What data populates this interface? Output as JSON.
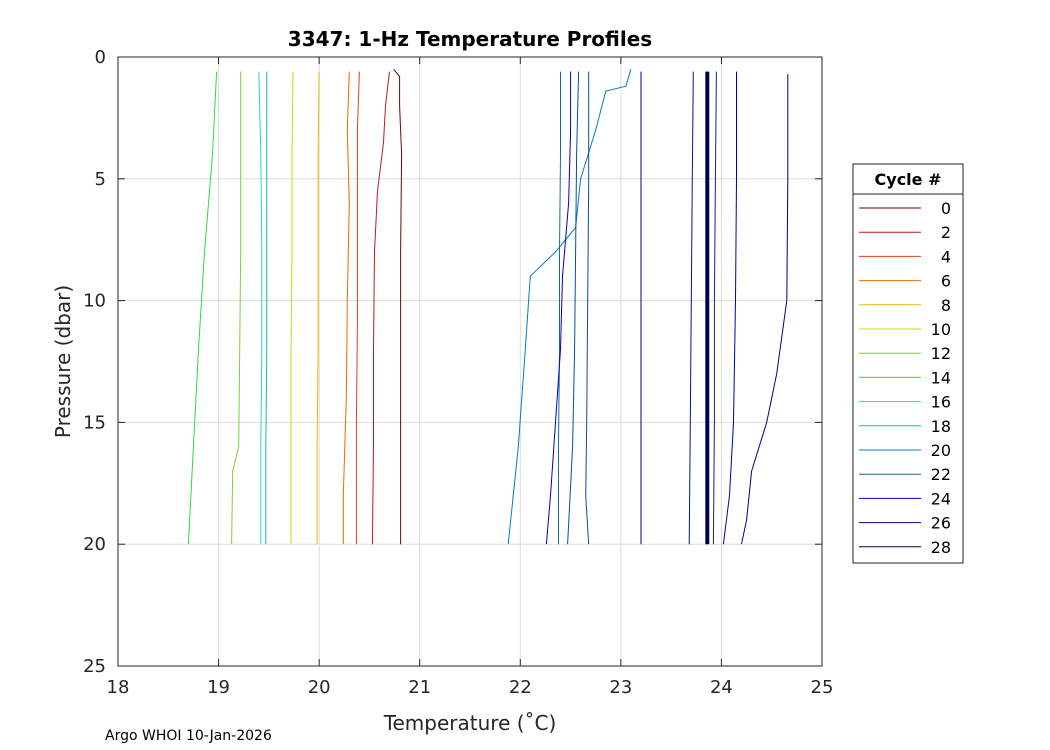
{
  "chart_data": {
    "type": "line",
    "title": "3347: 1-Hz Temperature Profiles",
    "xlabel": "Temperature (˚C)",
    "ylabel": "Pressure (dbar)",
    "xlim": [
      18,
      25
    ],
    "ylim": [
      0,
      25
    ],
    "y_reversed": true,
    "xticks": [
      18,
      19,
      20,
      21,
      22,
      23,
      24,
      25
    ],
    "yticks": [
      0,
      5,
      10,
      15,
      20,
      25
    ],
    "grid": true,
    "legend": {
      "title": "Cycle #",
      "placement": "outside-right"
    },
    "series": [
      {
        "name": "0",
        "color": "#800000",
        "points": [
          [
            20.74,
            0.5
          ],
          [
            20.8,
            0.8
          ],
          [
            20.8,
            2
          ],
          [
            20.82,
            4
          ],
          [
            20.81,
            8
          ],
          [
            20.81,
            12
          ],
          [
            20.81,
            16
          ],
          [
            20.81,
            20
          ]
        ]
      },
      {
        "name": "2",
        "color": "#b71c1c",
        "points": [
          [
            20.7,
            0.6
          ],
          [
            20.66,
            2
          ],
          [
            20.64,
            3.5
          ],
          [
            20.58,
            5.5
          ],
          [
            20.55,
            8
          ],
          [
            20.54,
            12
          ],
          [
            20.54,
            16
          ],
          [
            20.53,
            20
          ]
        ]
      },
      {
        "name": "4",
        "color": "#d84315",
        "points": [
          [
            20.4,
            0.6
          ],
          [
            20.38,
            3
          ],
          [
            20.38,
            7
          ],
          [
            20.38,
            11
          ],
          [
            20.37,
            15
          ],
          [
            20.37,
            20
          ]
        ]
      },
      {
        "name": "6",
        "color": "#ef6c00",
        "points": [
          [
            20.3,
            0.6
          ],
          [
            20.28,
            3
          ],
          [
            20.3,
            6
          ],
          [
            20.28,
            10
          ],
          [
            20.27,
            14
          ],
          [
            20.24,
            18
          ],
          [
            20.24,
            20
          ]
        ]
      },
      {
        "name": "8",
        "color": "#e6b800",
        "points": [
          [
            20.0,
            0.6
          ],
          [
            19.99,
            4
          ],
          [
            19.99,
            8
          ],
          [
            19.99,
            12
          ],
          [
            19.98,
            16
          ],
          [
            19.98,
            20
          ]
        ]
      },
      {
        "name": "10",
        "color": "#c8d91a",
        "points": [
          [
            19.74,
            0.6
          ],
          [
            19.73,
            4
          ],
          [
            19.73,
            8
          ],
          [
            19.72,
            12
          ],
          [
            19.72,
            16
          ],
          [
            19.72,
            20
          ]
        ]
      },
      {
        "name": "12",
        "color": "#7cd23a",
        "points": [
          [
            19.22,
            0.6
          ],
          [
            19.22,
            4
          ],
          [
            19.22,
            8
          ],
          [
            19.21,
            12
          ],
          [
            19.2,
            16
          ],
          [
            19.14,
            17
          ],
          [
            19.13,
            20
          ]
        ]
      },
      {
        "name": "14",
        "color": "#33d44a",
        "points": [
          [
            18.98,
            0.6
          ],
          [
            18.94,
            4
          ],
          [
            18.86,
            8
          ],
          [
            18.8,
            12
          ],
          [
            18.75,
            16
          ],
          [
            18.7,
            20
          ]
        ]
      },
      {
        "name": "16",
        "color": "#22d6cf",
        "points": [
          [
            19.4,
            0.6
          ],
          [
            19.42,
            4
          ],
          [
            19.43,
            8
          ],
          [
            19.43,
            12
          ],
          [
            19.42,
            16
          ],
          [
            19.42,
            20
          ]
        ]
      },
      {
        "name": "18",
        "color": "#12bba0",
        "points": [
          [
            19.48,
            0.6
          ],
          [
            19.48,
            4
          ],
          [
            19.48,
            8
          ],
          [
            19.48,
            12
          ],
          [
            19.47,
            16
          ],
          [
            19.47,
            20
          ]
        ]
      },
      {
        "name": "20",
        "color": "#0a78c8",
        "points": [
          [
            23.1,
            0.5
          ],
          [
            23.05,
            1.2
          ],
          [
            22.85,
            1.4
          ],
          [
            22.75,
            3
          ],
          [
            22.6,
            5
          ],
          [
            22.55,
            7
          ],
          [
            22.35,
            8
          ],
          [
            22.1,
            9
          ],
          [
            22.05,
            12
          ],
          [
            21.98,
            16
          ],
          [
            21.88,
            20
          ]
        ]
      },
      {
        "name": "22",
        "color": "#1b6a9a",
        "points": [
          [
            22.4,
            0.6
          ],
          [
            22.4,
            4
          ],
          [
            22.39,
            8
          ],
          [
            22.39,
            12
          ],
          [
            22.38,
            16
          ],
          [
            22.38,
            20
          ]
        ]
      },
      {
        "name": "24",
        "color": "#0000cd",
        "points": [
          [
            22.5,
            0.6
          ],
          [
            22.5,
            3
          ],
          [
            22.48,
            6
          ],
          [
            22.42,
            9
          ],
          [
            22.4,
            12
          ],
          [
            22.35,
            15
          ],
          [
            22.3,
            18
          ],
          [
            22.26,
            20
          ]
        ]
      },
      {
        "name": "26",
        "color": "#00008b",
        "points": [
          [
            23.2,
            0.6
          ],
          [
            23.2,
            5
          ],
          [
            23.2,
            10
          ],
          [
            23.2,
            15
          ],
          [
            23.2,
            20
          ]
        ]
      },
      {
        "name": "28",
        "color": "#000050",
        "points": [
          [
            23.86,
            0.6
          ],
          [
            23.86,
            5
          ],
          [
            23.86,
            10
          ],
          [
            23.86,
            15
          ],
          [
            23.86,
            20
          ]
        ]
      },
      {
        "name": "",
        "color": "#000080",
        "points": [
          [
            24.66,
            0.7
          ],
          [
            24.66,
            5
          ],
          [
            24.65,
            10
          ],
          [
            24.55,
            13
          ],
          [
            24.45,
            15
          ],
          [
            24.3,
            17
          ],
          [
            24.25,
            19
          ],
          [
            24.2,
            20
          ]
        ]
      },
      {
        "name": "",
        "color": "#0000b0",
        "points": [
          [
            24.15,
            0.6
          ],
          [
            24.15,
            5
          ],
          [
            24.14,
            10
          ],
          [
            24.12,
            15
          ],
          [
            24.08,
            18
          ],
          [
            24.02,
            20
          ]
        ]
      },
      {
        "name": "",
        "color": "#00148c",
        "points": [
          [
            23.72,
            0.6
          ],
          [
            23.71,
            5
          ],
          [
            23.7,
            10
          ],
          [
            23.69,
            15
          ],
          [
            23.68,
            20
          ]
        ]
      },
      {
        "name": "",
        "color": "#1a1aa0",
        "points": [
          [
            23.95,
            0.6
          ],
          [
            23.94,
            5
          ],
          [
            23.93,
            10
          ],
          [
            23.93,
            15
          ],
          [
            23.92,
            20
          ]
        ]
      },
      {
        "name": "",
        "color": "#0050a0",
        "points": [
          [
            22.58,
            0.6
          ],
          [
            22.56,
            4
          ],
          [
            22.55,
            8
          ],
          [
            22.54,
            12
          ],
          [
            22.52,
            16
          ],
          [
            22.47,
            20
          ]
        ]
      },
      {
        "name": "",
        "color": "#0a4fa0",
        "points": [
          [
            22.68,
            0.6
          ],
          [
            22.68,
            5
          ],
          [
            22.67,
            10
          ],
          [
            22.66,
            15
          ],
          [
            22.65,
            18
          ],
          [
            22.68,
            20
          ]
        ]
      }
    ],
    "thick_series": [
      "28"
    ]
  },
  "footer": "Argo WHOI 10-Jan-2026"
}
